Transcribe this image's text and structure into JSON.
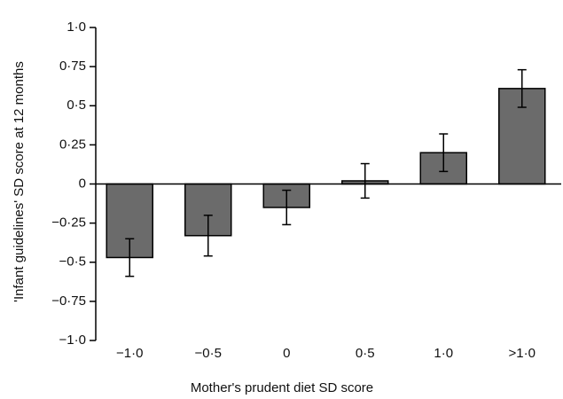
{
  "chart_data": {
    "type": "bar",
    "x_label": "Mother's prudent diet SD score",
    "y_label": "'Infant guidelines' SD score at 12 months",
    "categories": [
      "−1·0",
      "−0·5",
      "0",
      "0·5",
      "1·0",
      ">1·0"
    ],
    "values": [
      -0.47,
      -0.33,
      -0.15,
      0.02,
      0.2,
      0.61
    ],
    "errors": [
      0.12,
      0.13,
      0.11,
      0.11,
      0.12,
      0.12
    ],
    "color": "#6b6b6b",
    "ylim": [
      -1.0,
      1.0
    ],
    "yticks": [
      {
        "value": -1.0,
        "label": "−1·0"
      },
      {
        "value": -0.75,
        "label": "−0·75"
      },
      {
        "value": -0.5,
        "label": "−0·5"
      },
      {
        "value": -0.25,
        "label": "−0·25"
      },
      0,
      {
        "value": 0.25,
        "label": "0·25"
      },
      {
        "value": 0.5,
        "label": "0·5"
      },
      {
        "value": 0.75,
        "label": "0·75"
      },
      {
        "value": 1.0,
        "label": "1·0"
      }
    ],
    "grid": false
  }
}
